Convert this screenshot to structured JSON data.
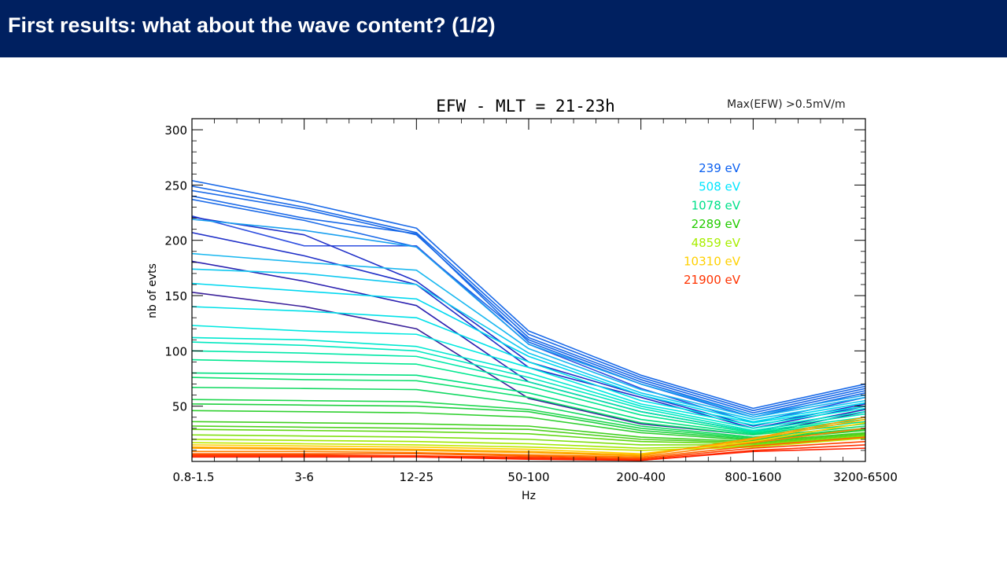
{
  "slide": {
    "title": "First results: what about the wave content? (1/2)",
    "header_color": "#002060"
  },
  "annotation": "Max(EFW) >0.5mV/m",
  "chart_data": {
    "type": "line",
    "title": "EFW - MLT = 21-23h",
    "xlabel": "Hz",
    "ylabel": "nb of evts",
    "categories": [
      "0.8-1.5",
      "3-6",
      "12-25",
      "50-100",
      "200-400",
      "800-1600",
      "3200-6500"
    ],
    "ylim": [
      0,
      310
    ],
    "yticks": [
      50,
      100,
      150,
      200,
      250,
      300
    ],
    "grid": false,
    "legend_placement": "top-right",
    "legend": [
      {
        "label": "239 eV",
        "color": "#0a5ff0"
      },
      {
        "label": "508 eV",
        "color": "#00e5ff"
      },
      {
        "label": "1078 eV",
        "color": "#00e08a"
      },
      {
        "label": "2289 eV",
        "color": "#22cc00"
      },
      {
        "label": "4859 eV",
        "color": "#a8ee00"
      },
      {
        "label": "10310 eV",
        "color": "#ffd000"
      },
      {
        "label": "21900 eV",
        "color": "#ff3300"
      }
    ],
    "series": [
      {
        "color": "#1a6ae8",
        "values": [
          254,
          234,
          211,
          118,
          78,
          48,
          70
        ]
      },
      {
        "color": "#1a6ae8",
        "values": [
          249,
          230,
          207,
          115,
          76,
          46,
          68
        ]
      },
      {
        "color": "#1a6ae8",
        "values": [
          245,
          228,
          205,
          112,
          74,
          44,
          66
        ]
      },
      {
        "color": "#1a6ae8",
        "values": [
          237,
          218,
          194,
          110,
          72,
          42,
          64
        ]
      },
      {
        "color": "#1a6ae8",
        "values": [
          240,
          220,
          206,
          108,
          70,
          40,
          62
        ]
      },
      {
        "color": "#3050e0",
        "values": [
          222,
          195,
          195,
          106,
          66,
          35,
          58
        ]
      },
      {
        "color": "#2030c8",
        "values": [
          221,
          205,
          163,
          90,
          60,
          32,
          52
        ]
      },
      {
        "color": "#2030c8",
        "values": [
          207,
          186,
          160,
          85,
          58,
          30,
          50
        ]
      },
      {
        "color": "#2a20b0",
        "values": [
          181,
          163,
          141,
          72,
          45,
          27,
          47
        ]
      },
      {
        "color": "#3a209a",
        "values": [
          153,
          140,
          120,
          57,
          34,
          24,
          45
        ]
      },
      {
        "color": "#1aa0f0",
        "values": [
          219,
          209,
          194,
          106,
          70,
          42,
          60
        ]
      },
      {
        "color": "#1ab8f0",
        "values": [
          188,
          180,
          173,
          102,
          65,
          40,
          58
        ]
      },
      {
        "color": "#10c8f0",
        "values": [
          174,
          170,
          160,
          98,
          62,
          38,
          55
        ]
      },
      {
        "color": "#00d8f0",
        "values": [
          161,
          154,
          147,
          95,
          60,
          36,
          53
        ]
      },
      {
        "color": "#00e0e8",
        "values": [
          140,
          136,
          130,
          90,
          55,
          35,
          50
        ]
      },
      {
        "color": "#00e8e0",
        "values": [
          123,
          118,
          115,
          85,
          52,
          33,
          48
        ]
      },
      {
        "color": "#00e8d0",
        "values": [
          112,
          110,
          104,
          80,
          50,
          30,
          45
        ]
      },
      {
        "color": "#00e8c0",
        "values": [
          108,
          105,
          100,
          76,
          48,
          28,
          43
        ]
      },
      {
        "color": "#00e8a8",
        "values": [
          100,
          98,
          95,
          72,
          45,
          27,
          40
        ]
      },
      {
        "color": "#00e890",
        "values": [
          92,
          90,
          88,
          68,
          42,
          26,
          38
        ]
      },
      {
        "color": "#00e080",
        "values": [
          80,
          79,
          78,
          62,
          38,
          25,
          36
        ]
      },
      {
        "color": "#10e070",
        "values": [
          76,
          74,
          73,
          58,
          35,
          24,
          34
        ]
      },
      {
        "color": "#10d860",
        "values": [
          67,
          66,
          65,
          52,
          32,
          22,
          32
        ]
      },
      {
        "color": "#20d850",
        "values": [
          56,
          55,
          54,
          47,
          30,
          21,
          30
        ]
      },
      {
        "color": "#20d040",
        "values": [
          52,
          51,
          50,
          45,
          28,
          20,
          29
        ]
      },
      {
        "color": "#30d030",
        "values": [
          46,
          45,
          44,
          40,
          26,
          19,
          28
        ]
      },
      {
        "color": "#40d020",
        "values": [
          36,
          35,
          34,
          32,
          22,
          18,
          26
        ]
      },
      {
        "color": "#50d020",
        "values": [
          32,
          31,
          30,
          29,
          20,
          17,
          25
        ]
      },
      {
        "color": "#60d810",
        "values": [
          29,
          28,
          27,
          25,
          18,
          16,
          24
        ]
      },
      {
        "color": "#80e010",
        "values": [
          24,
          23,
          22,
          20,
          15,
          15,
          23
        ]
      },
      {
        "color": "#a0e800",
        "values": [
          20,
          19,
          18,
          16,
          12,
          14,
          22
        ]
      },
      {
        "color": "#c0e800",
        "values": [
          17,
          16,
          15,
          13,
          10,
          13,
          21
        ]
      },
      {
        "color": "#ffd000",
        "values": [
          15,
          14,
          13,
          11,
          7,
          18,
          35
        ]
      },
      {
        "color": "#ffb000",
        "values": [
          13,
          12,
          11,
          9,
          6,
          20,
          38
        ]
      },
      {
        "color": "#ffa000",
        "values": [
          12,
          11,
          10,
          8,
          5,
          21,
          40
        ]
      },
      {
        "color": "#ff8000",
        "values": [
          9,
          9,
          8,
          6,
          4,
          17,
          30
        ]
      },
      {
        "color": "#ff6000",
        "values": [
          7,
          7,
          7,
          5,
          3,
          14,
          22
        ]
      },
      {
        "color": "#ff4000",
        "values": [
          6,
          6,
          5,
          4,
          2,
          12,
          18
        ]
      },
      {
        "color": "#ff3000",
        "values": [
          5,
          5,
          5,
          3,
          1,
          10,
          15
        ]
      },
      {
        "color": "#ff2000",
        "values": [
          4,
          4,
          4,
          2,
          1,
          9,
          12
        ]
      }
    ]
  }
}
